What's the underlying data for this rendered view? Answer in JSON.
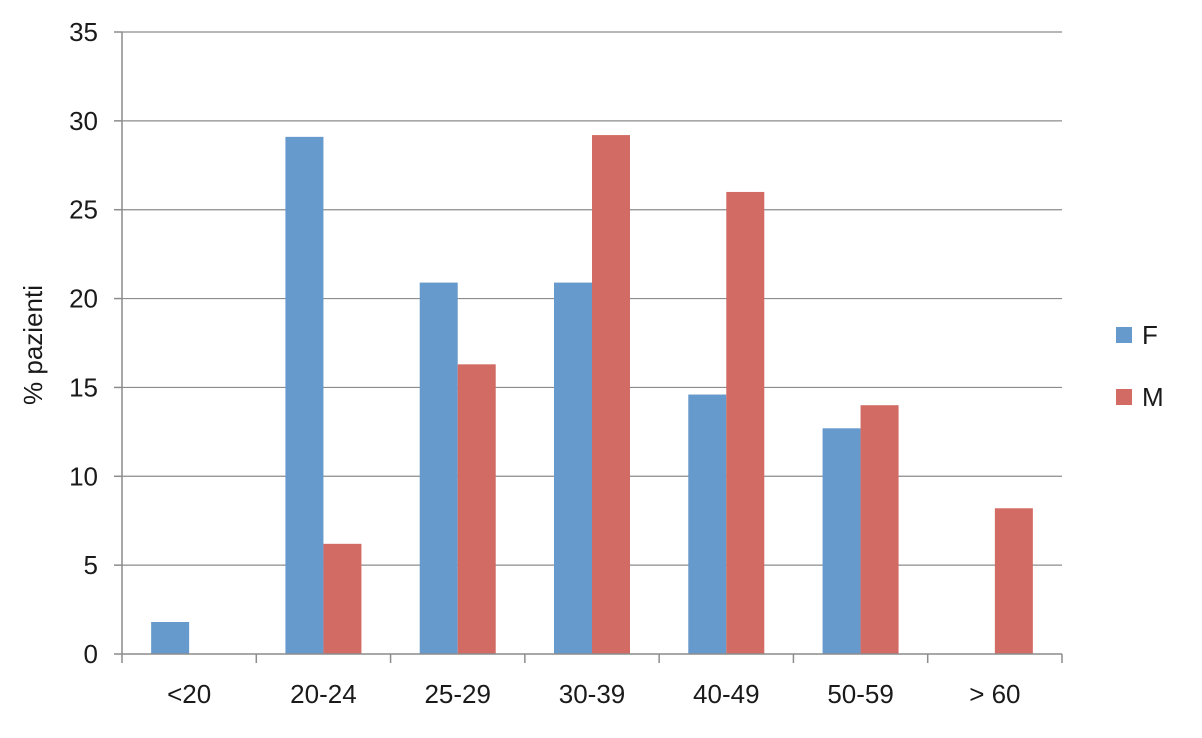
{
  "chart_data": {
    "type": "bar",
    "title": "",
    "xlabel": "",
    "ylabel": "% pazienti",
    "ylim": [
      0,
      35
    ],
    "yticks": [
      0,
      5,
      10,
      15,
      20,
      25,
      30,
      35
    ],
    "grid": "horizontal",
    "legend_position": "right",
    "categories": [
      "<20",
      "20-24",
      "25-29",
      "30-39",
      "40-49",
      "50-59",
      "> 60"
    ],
    "series": [
      {
        "name": "F",
        "color": "#6699cc",
        "values": [
          1.8,
          29.1,
          20.9,
          20.9,
          14.6,
          12.7,
          0
        ]
      },
      {
        "name": "M",
        "color": "#d16b63",
        "values": [
          0,
          6.2,
          16.3,
          29.2,
          26.0,
          14.0,
          8.2
        ]
      }
    ]
  }
}
